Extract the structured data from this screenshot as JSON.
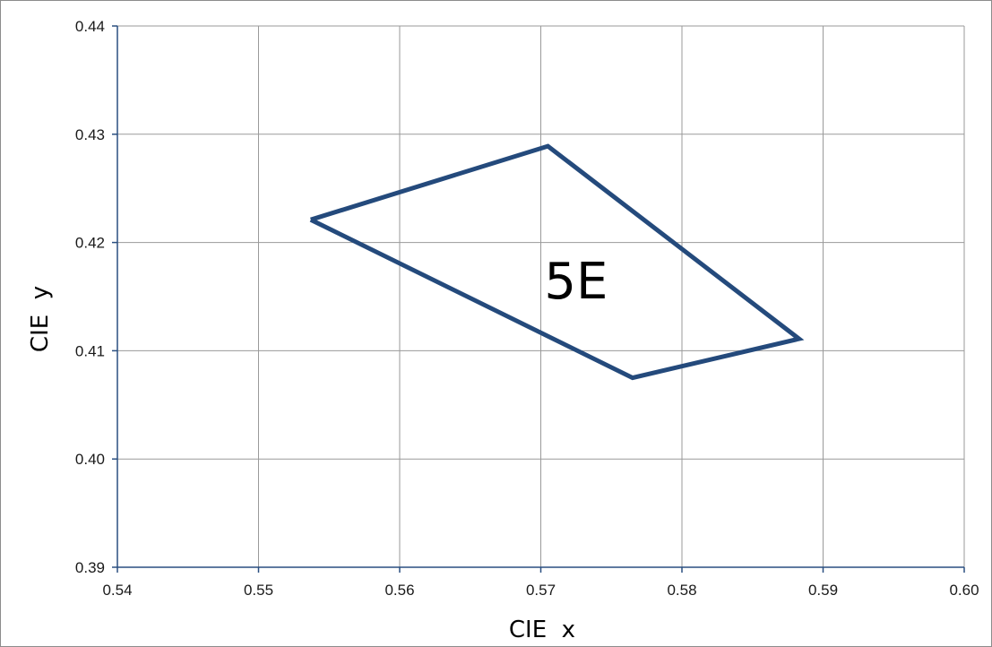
{
  "chart_data": {
    "type": "line",
    "xlabel": "CIE  x",
    "ylabel": "CIE  y",
    "xlim": [
      0.54,
      0.6
    ],
    "ylim": [
      0.39,
      0.44
    ],
    "x_ticks": [
      "0.54",
      "0.55",
      "0.56",
      "0.57",
      "0.58",
      "0.59",
      "0.60"
    ],
    "y_ticks": [
      "0.39",
      "0.40",
      "0.41",
      "0.42",
      "0.43",
      "0.44"
    ],
    "grid": true,
    "annotations": [
      {
        "text": "5E",
        "x": 0.5725,
        "y": 0.4165
      }
    ],
    "series": [
      {
        "x": [
          0.5537,
          0.5705,
          0.5883,
          0.5765,
          0.5537
        ],
        "y": [
          0.4221,
          0.4289,
          0.4111,
          0.4075,
          0.4221
        ]
      }
    ],
    "colors": {
      "series": "#244a7c",
      "grid": "#9a9a9a",
      "axis": "#2a4f80"
    }
  }
}
